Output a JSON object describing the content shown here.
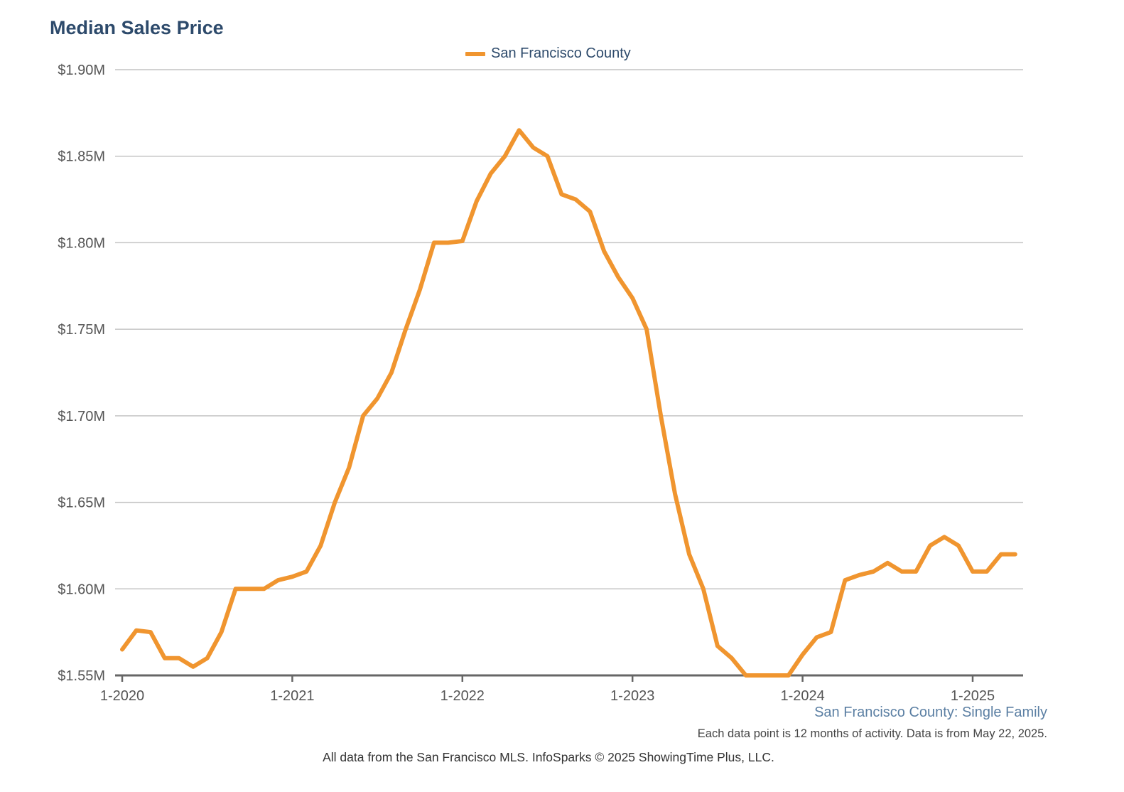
{
  "chart_data": {
    "type": "line",
    "title": "Median Sales Price",
    "subtitle": "San Francisco County: Single Family",
    "footnote": "Each data point is 12 months of activity. Data is from May 22, 2025.",
    "source": "All data from the San Francisco MLS. InfoSparks © 2025 ShowingTime Plus, LLC.",
    "x_ticks": [
      "1-2020",
      "1-2021",
      "1-2022",
      "1-2023",
      "1-2024",
      "1-2025"
    ],
    "y_ticks": [
      "$1.55M",
      "$1.60M",
      "$1.65M",
      "$1.70M",
      "$1.75M",
      "$1.80M",
      "$1.85M",
      "$1.90M"
    ],
    "ylim": [
      1.55,
      1.9
    ],
    "y_unit": "$M",
    "legend_position": "top-center",
    "grid": true,
    "series": [
      {
        "name": "San Francisco County",
        "color": "#f0952f",
        "x": [
          "2020-01",
          "2020-02",
          "2020-03",
          "2020-04",
          "2020-05",
          "2020-06",
          "2020-07",
          "2020-08",
          "2020-09",
          "2020-10",
          "2020-11",
          "2020-12",
          "2021-01",
          "2021-02",
          "2021-03",
          "2021-04",
          "2021-05",
          "2021-06",
          "2021-07",
          "2021-08",
          "2021-09",
          "2021-10",
          "2021-11",
          "2021-12",
          "2022-01",
          "2022-02",
          "2022-03",
          "2022-04",
          "2022-05",
          "2022-06",
          "2022-07",
          "2022-08",
          "2022-09",
          "2022-10",
          "2022-11",
          "2022-12",
          "2023-01",
          "2023-02",
          "2023-03",
          "2023-04",
          "2023-05",
          "2023-06",
          "2023-07",
          "2023-08",
          "2023-09",
          "2023-10",
          "2023-11",
          "2023-12",
          "2024-01",
          "2024-02",
          "2024-03",
          "2024-04",
          "2024-05",
          "2024-06",
          "2024-07",
          "2024-08",
          "2024-09",
          "2024-10",
          "2024-11",
          "2024-12",
          "2025-01",
          "2025-02",
          "2025-03",
          "2025-04"
        ],
        "values": [
          1.565,
          1.576,
          1.575,
          1.56,
          1.56,
          1.555,
          1.56,
          1.575,
          1.6,
          1.6,
          1.6,
          1.605,
          1.607,
          1.61,
          1.625,
          1.65,
          1.67,
          1.7,
          1.71,
          1.725,
          1.75,
          1.773,
          1.8,
          1.8,
          1.801,
          1.824,
          1.84,
          1.85,
          1.865,
          1.855,
          1.85,
          1.828,
          1.825,
          1.818,
          1.795,
          1.78,
          1.768,
          1.75,
          1.7,
          1.655,
          1.62,
          1.6,
          1.567,
          1.56,
          1.55,
          1.55,
          1.55,
          1.55,
          1.562,
          1.572,
          1.575,
          1.605,
          1.608,
          1.61,
          1.615,
          1.61,
          1.61,
          1.625,
          1.63,
          1.625,
          1.61,
          1.61,
          1.62,
          1.62
        ]
      }
    ]
  }
}
